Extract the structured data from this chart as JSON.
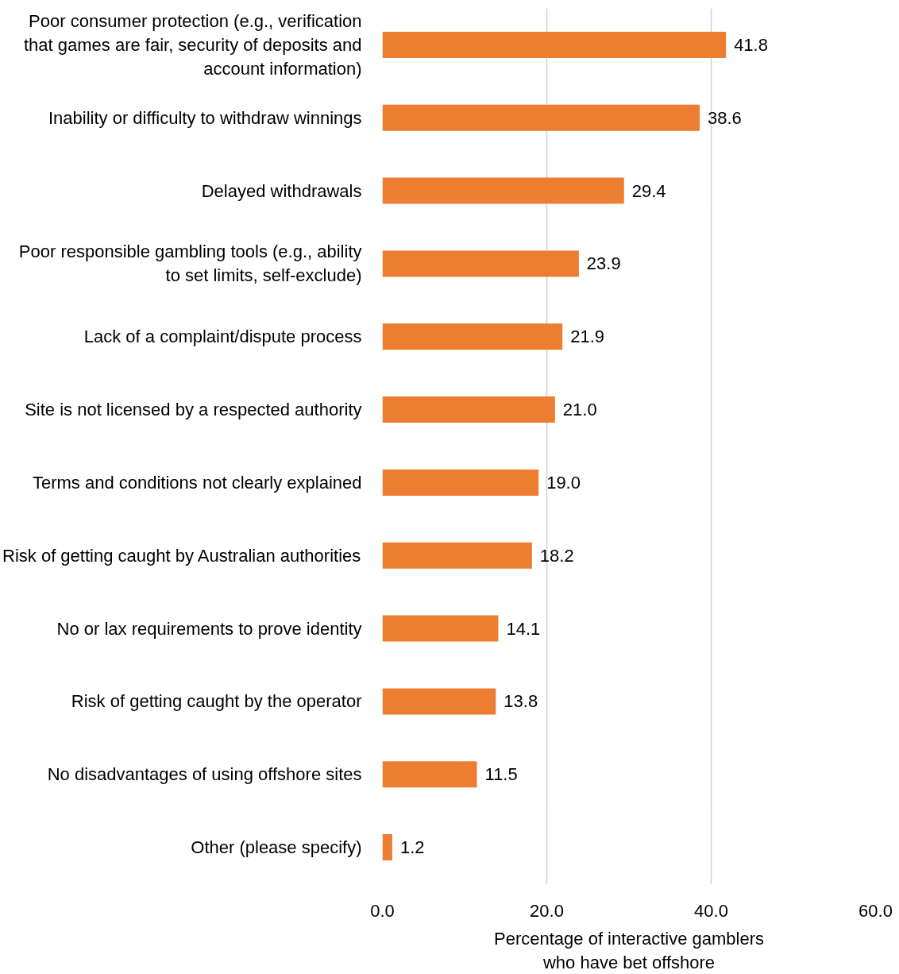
{
  "chart_data": {
    "type": "bar",
    "orientation": "horizontal",
    "categories": [
      "Poor consumer protection (e.g., verification that games are fair, security of deposits and account information)",
      "Inability or difficulty to withdraw winnings",
      "Delayed withdrawals",
      "Poor responsible gambling tools (e.g., ability to set limits, self-exclude)",
      "Lack of a complaint/dispute process",
      "Site is not licensed by a respected authority",
      "Terms and conditions not clearly explained",
      "Risk of getting caught by Australian authorities",
      "No or lax requirements to prove identity",
      "Risk of getting caught by the operator",
      "No disadvantages of using offshore sites",
      "Other (please specify)"
    ],
    "values": [
      41.8,
      38.6,
      29.4,
      23.9,
      21.9,
      21.0,
      19.0,
      18.2,
      14.1,
      13.8,
      11.5,
      1.2
    ],
    "value_labels": [
      "41.8",
      "38.6",
      "29.4",
      "23.9",
      "21.9",
      "21.0",
      "19.0",
      "18.2",
      "14.1",
      "13.8",
      "11.5",
      "1.2"
    ],
    "color": "#ed7d31",
    "xlabel": "Percentage of interactive gamblers who have bet offshore",
    "xlim": [
      0,
      60
    ],
    "xticks": [
      {
        "value": 0,
        "label": "0.0"
      },
      {
        "value": 20,
        "label": "20.0"
      },
      {
        "value": 40,
        "label": "40.0"
      },
      {
        "value": 60,
        "label": "60.0"
      }
    ],
    "grid": "x"
  }
}
